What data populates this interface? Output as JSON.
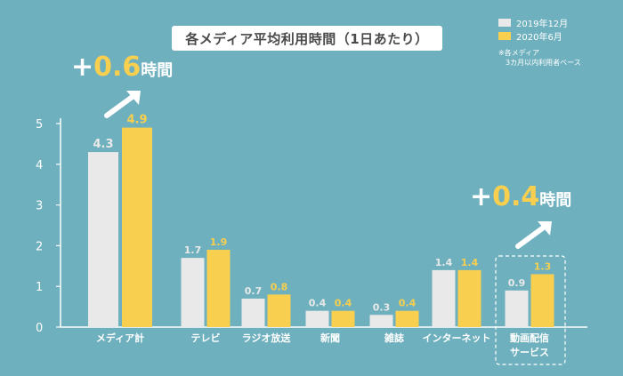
{
  "title": "各メディア平均利用時間（1日あたり）",
  "legend": [
    {
      "name": "2019年12月",
      "color": "#e9e9e9"
    },
    {
      "name": "2020年6月",
      "color": "#f8cf4f"
    }
  ],
  "note": "※各メディア\n　3カ月以内利用者ベース",
  "callouts": [
    {
      "plus": "+",
      "value": "0.6",
      "unit": "時間"
    },
    {
      "plus": "+",
      "value": "0.4",
      "unit": "時間"
    }
  ],
  "chart_data": {
    "type": "bar",
    "categories": [
      "メディア計",
      "テレビ",
      "ラジオ放送",
      "新聞",
      "雑誌",
      "インターネット",
      "動画配信\nサービス"
    ],
    "series": [
      {
        "name": "2019年12月",
        "values": [
          4.3,
          1.7,
          0.7,
          0.4,
          0.3,
          1.4,
          0.9
        ],
        "labels": [
          "4.3",
          "1.7",
          "0.7",
          "0.4",
          "0.3",
          "1.4",
          "0.9"
        ],
        "color": "#e9e9e9"
      },
      {
        "name": "2020年6月",
        "values": [
          4.9,
          1.9,
          0.8,
          0.4,
          0.4,
          1.4,
          1.3
        ],
        "labels": [
          "4.9",
          "1.9",
          "0.8",
          "0.4",
          "0.4",
          "1.4",
          "1.3"
        ],
        "color": "#f8cf4f"
      }
    ],
    "yticks": [
      "0",
      "1",
      "2",
      "3",
      "4",
      "5"
    ],
    "ylim": [
      0,
      5
    ],
    "grid": false,
    "legend_position": "top-right"
  }
}
